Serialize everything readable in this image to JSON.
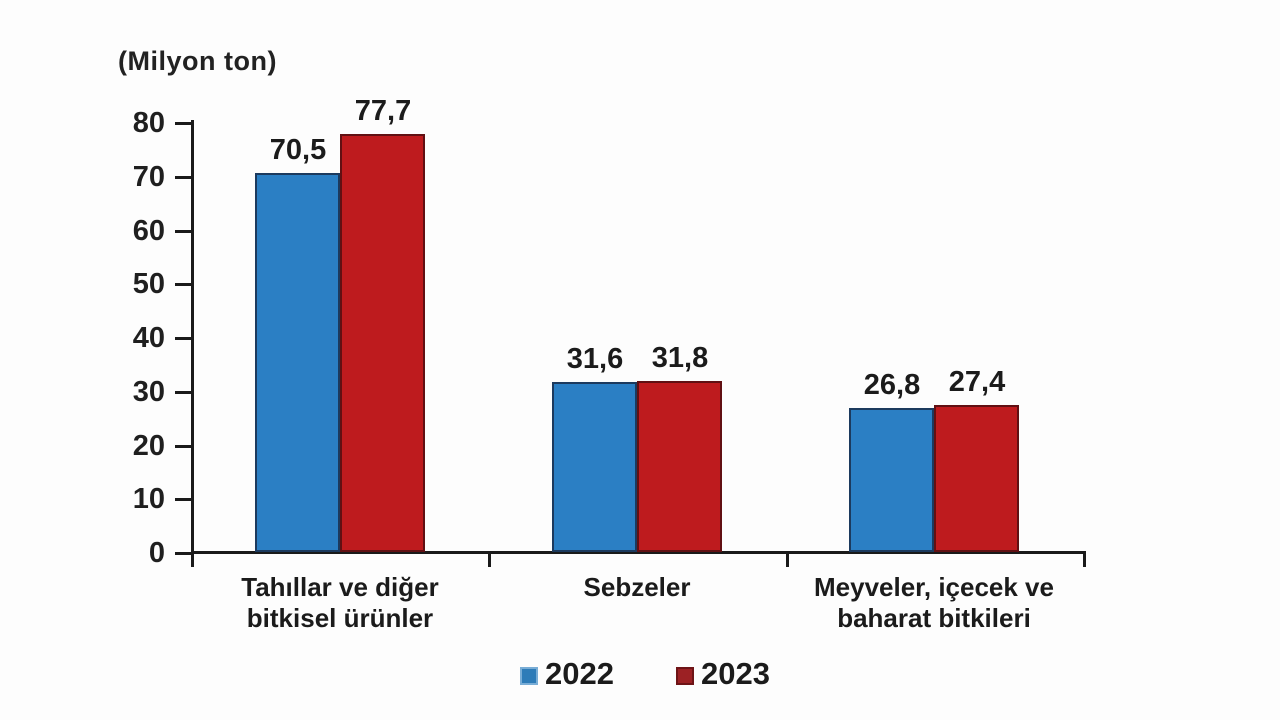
{
  "chart": {
    "unit_label": "(Milyon ton)"
  },
  "chart_data": {
    "type": "bar",
    "title": "",
    "xlabel": "",
    "ylabel": "(Milyon ton)",
    "categories": [
      "Tahıllar ve diğer bitkisel ürünler",
      "Sebzeler",
      "Meyveler, içecek ve baharat bitkileri"
    ],
    "categories_lines": [
      [
        "Tahıllar ve diğer",
        "bitkisel ürünler"
      ],
      [
        "Sebzeler"
      ],
      [
        "Meyveler, içecek ve",
        "baharat bitkileri"
      ]
    ],
    "series": [
      {
        "name": "2022",
        "values": [
          70.5,
          31.6,
          26.8
        ],
        "value_labels": [
          "70,5",
          "31,6",
          "26,8"
        ],
        "fill": "#2B7FC4",
        "border": "#1C3A5E"
      },
      {
        "name": "2023",
        "values": [
          77.7,
          31.8,
          27.4
        ],
        "value_labels": [
          "77,7",
          "31,8",
          "27,4"
        ],
        "fill": "#BE1B1E",
        "border": "#611013"
      }
    ],
    "ylim": [
      0,
      80
    ],
    "yticks": [
      0,
      10,
      20,
      30,
      40,
      50,
      60,
      70,
      80
    ],
    "grid": false,
    "legend_position": "bottom"
  },
  "legend": {
    "items": [
      {
        "label": "2022",
        "swatch_fill": "#2E7CB8",
        "swatch_border": "#79ADD6"
      },
      {
        "label": "2023",
        "swatch_fill": "#9C2124",
        "swatch_border": "#6E1417"
      }
    ]
  },
  "colors": {
    "axis": "#1a1a1a",
    "text": "#1b1b1b",
    "background": "#fdfdfd"
  }
}
